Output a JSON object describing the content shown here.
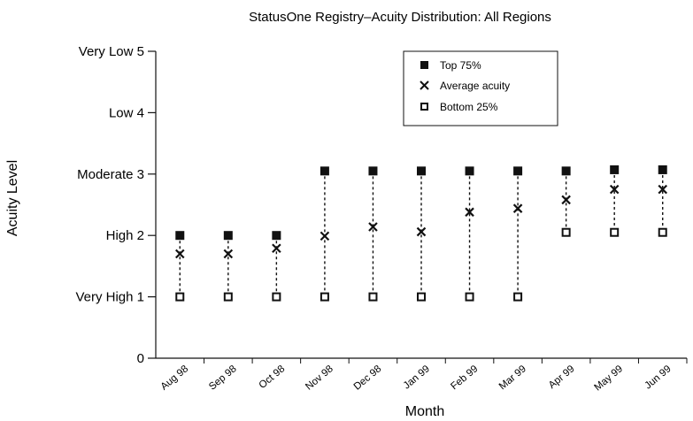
{
  "chart_data": {
    "type": "scatter",
    "title": "StatusOne Registry–Acuity Distribution: All Regions",
    "xlabel": "Month",
    "ylabel": "Acuity Level",
    "ylim": [
      0,
      5
    ],
    "yticks": [
      {
        "value": 0,
        "label": "0"
      },
      {
        "value": 1,
        "label": "Very High 1"
      },
      {
        "value": 2,
        "label": "High 2"
      },
      {
        "value": 3,
        "label": "Moderate 3"
      },
      {
        "value": 4,
        "label": "Low 4"
      },
      {
        "value": 5,
        "label": "Very Low 5"
      }
    ],
    "categories": [
      "Aug 98",
      "Sep 98",
      "Oct 98",
      "Nov 98",
      "Dec 98",
      "Jan 99",
      "Feb 99",
      "Mar 99",
      "Apr 99",
      "May 99",
      "Jun 99"
    ],
    "series": [
      {
        "name": "Top 75%",
        "marker": "filled-square",
        "values": [
          2.0,
          2.0,
          2.0,
          3.05,
          3.05,
          3.05,
          3.05,
          3.05,
          3.05,
          3.07,
          3.07
        ]
      },
      {
        "name": "Average acuity",
        "marker": "x",
        "values": [
          1.7,
          1.7,
          1.79,
          1.99,
          2.14,
          2.06,
          2.38,
          2.44,
          2.58,
          2.75,
          2.75
        ]
      },
      {
        "name": "Bottom 25%",
        "marker": "open-square",
        "values": [
          1.0,
          1.0,
          1.0,
          1.0,
          1.0,
          1.0,
          1.0,
          1.0,
          2.05,
          2.05,
          2.05
        ]
      }
    ],
    "range_lines": "dashed",
    "grid": false,
    "legend_position": "top-right"
  }
}
